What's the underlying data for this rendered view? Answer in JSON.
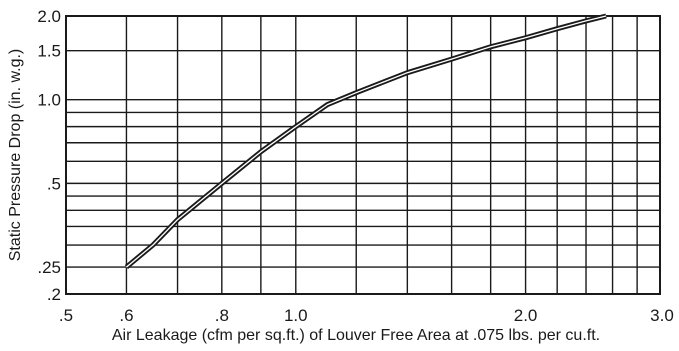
{
  "chart_data": {
    "type": "line",
    "title": "",
    "xlabel": "Air Leakage (cfm per sq.ft.) of Louver Free Area at .075 lbs. per cu.ft.",
    "ylabel": "Static Pressure Drop (in. w.g.)",
    "x_scale": "log",
    "y_scale": "log",
    "xlim": [
      0.5,
      3.0
    ],
    "ylim": [
      0.2,
      2.0
    ],
    "grid": true,
    "legend": "none",
    "x_ticks": [
      {
        "value": 0.5,
        "label": ".5"
      },
      {
        "value": 0.6,
        "label": ".6"
      },
      {
        "value": 0.8,
        "label": ".8"
      },
      {
        "value": 1.0,
        "label": "1.0"
      },
      {
        "value": 2.0,
        "label": "2.0"
      },
      {
        "value": 3.0,
        "label": "3.0"
      }
    ],
    "y_ticks": [
      {
        "value": 0.2,
        "label": ".2"
      },
      {
        "value": 0.25,
        "label": ".25"
      },
      {
        "value": 0.5,
        "label": ".5"
      },
      {
        "value": 1.0,
        "label": "1.0"
      },
      {
        "value": 1.5,
        "label": "1.5"
      },
      {
        "value": 2.0,
        "label": "2.0"
      }
    ],
    "x_gridlines": [
      0.5,
      0.6,
      0.7,
      0.8,
      0.9,
      1.0,
      1.2,
      1.4,
      1.6,
      1.8,
      2.0,
      2.2,
      2.4,
      2.6,
      2.8,
      3.0
    ],
    "y_gridlines": [
      0.2,
      0.25,
      0.3,
      0.35,
      0.4,
      0.45,
      0.5,
      0.6,
      0.7,
      0.8,
      0.9,
      1.0,
      1.5,
      2.0
    ],
    "series": [
      {
        "color": "#1a1a1a",
        "x": [
          0.6,
          0.65,
          0.7,
          0.8,
          0.9,
          1.0,
          1.1,
          1.2,
          1.4,
          1.6,
          1.8,
          2.0,
          2.2,
          2.4,
          2.55
        ],
        "y": [
          0.25,
          0.3,
          0.37,
          0.5,
          0.65,
          0.8,
          0.96,
          1.06,
          1.25,
          1.4,
          1.55,
          1.67,
          1.8,
          1.92,
          2.0
        ]
      }
    ]
  },
  "colors": {
    "ink": "#1a1a1a",
    "background": "#ffffff"
  }
}
